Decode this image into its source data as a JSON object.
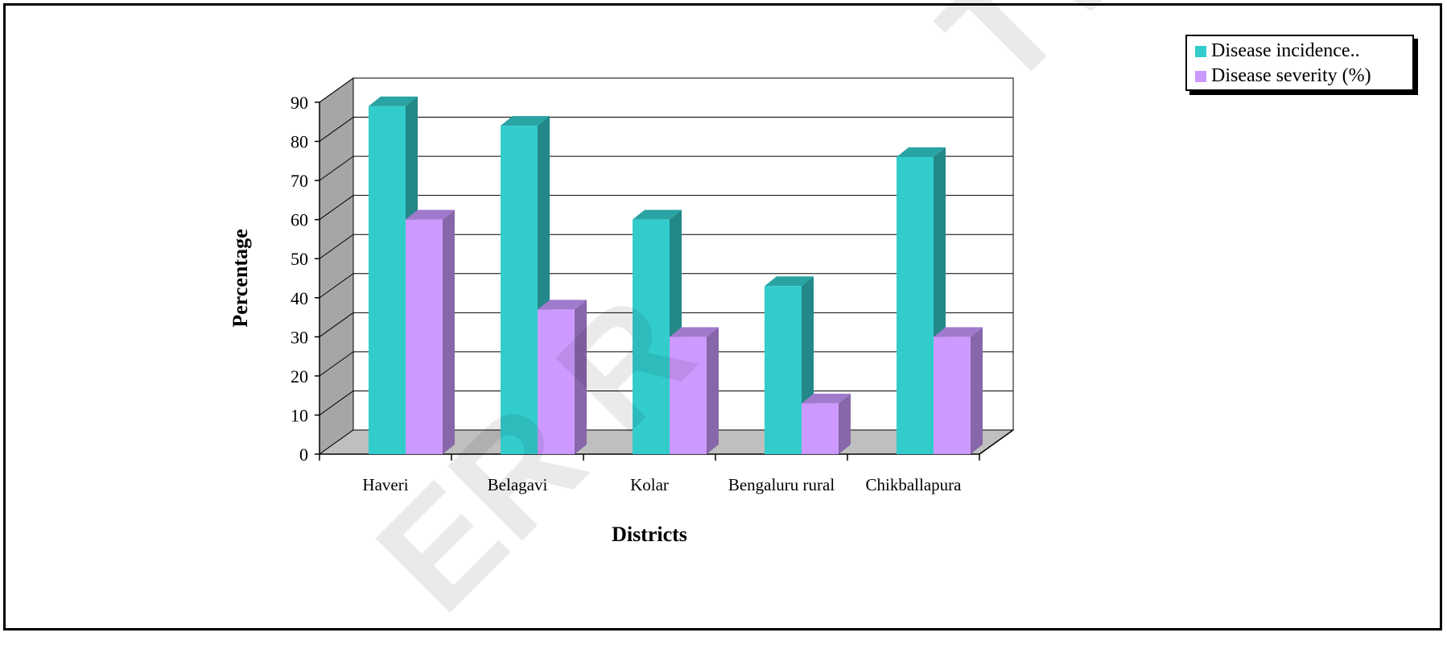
{
  "chart_data": {
    "type": "bar",
    "xlabel": "Districts",
    "ylabel": "Percentage",
    "ylim": [
      0,
      90
    ],
    "y_ticks": [
      0,
      10,
      20,
      30,
      40,
      50,
      60,
      70,
      80,
      90
    ],
    "grid": true,
    "three_d": true,
    "legend_position": "top-right",
    "categories": [
      "Haveri",
      "Belagavi",
      "Kolar",
      "Bengaluru rural",
      "Chikballapura"
    ],
    "series": [
      {
        "name": "Disease incidence..",
        "values": [
          89,
          84,
          60,
          43,
          76
        ],
        "color": "#33CCCC",
        "side_color": "#228888",
        "top_color": "#29A3A3"
      },
      {
        "name": "Disease severity (%)",
        "values": [
          60,
          37,
          30,
          13,
          30
        ],
        "color": "#CC99FF",
        "side_color": "#8866AA",
        "top_color": "#A07ACC"
      }
    ]
  },
  "colors": {
    "back_wall": "#FFFFFF",
    "side_wall": "#A6A6A6",
    "floor": "#BFBFBF",
    "gridline": "#000000",
    "watermark": "#000000"
  },
  "watermark_text": {
    "upper": "TW",
    "lower": "ER R"
  }
}
